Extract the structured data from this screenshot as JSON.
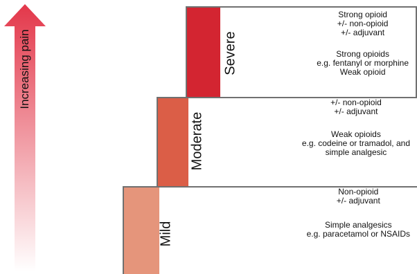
{
  "arrow": {
    "label": "Increasing pain",
    "color_top": "#e3374a",
    "color_bottom": "#ffffff"
  },
  "levels": {
    "mild": {
      "label": "Mild",
      "color": "#e5957b",
      "rows": [
        "Non-opioid",
        "+/- adjuvant",
        "",
        "Simple analgesics",
        "e.g. paracetamol or NSAIDs"
      ]
    },
    "moderate": {
      "label": "Moderate",
      "color": "#db5e47",
      "rows": [
        "+/- non-opioid",
        "+/- adjuvant",
        "",
        "Weak opioids",
        "e.g. codeine or tramadol, and",
        "simple analgesic"
      ]
    },
    "severe": {
      "label": "Severe",
      "color": "#d32531",
      "rows": [
        "Strong opioid",
        "+/- non-opioid",
        "+/- adjuvant",
        "",
        "Strong opioids",
        "e.g. fentanyl or morphine",
        "Weak opioid"
      ]
    }
  }
}
